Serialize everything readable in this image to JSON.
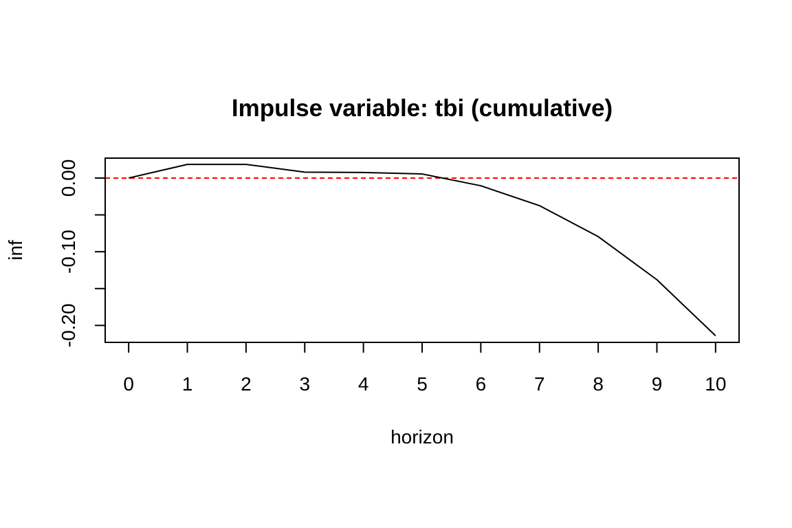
{
  "chart_data": {
    "type": "line",
    "title": "Impulse variable: tbi (cumulative)",
    "xlabel": "horizon",
    "ylabel": "inf",
    "x": [
      0,
      1,
      2,
      3,
      4,
      5,
      6,
      7,
      8,
      9,
      10
    ],
    "x_tick_labels": [
      "0",
      "1",
      "2",
      "3",
      "4",
      "5",
      "6",
      "7",
      "8",
      "9",
      "10"
    ],
    "y_ticks": [
      0.0,
      -0.05,
      -0.1,
      -0.15,
      -0.2
    ],
    "y_tick_labels": [
      "0.00",
      "",
      "-0.10",
      "",
      "-0.20"
    ],
    "xlim": [
      -0.4,
      10.4
    ],
    "ylim": [
      -0.223,
      0.027
    ],
    "grid": false,
    "series": [
      {
        "values": [
          0.0,
          0.0185,
          0.0185,
          0.008,
          0.0075,
          0.0055,
          -0.0105,
          -0.0375,
          -0.0795,
          -0.138,
          -0.214
        ],
        "color": "#000000"
      }
    ],
    "reference_line": {
      "y": 0.0,
      "color": "#ff0000",
      "style": "dashed"
    }
  }
}
